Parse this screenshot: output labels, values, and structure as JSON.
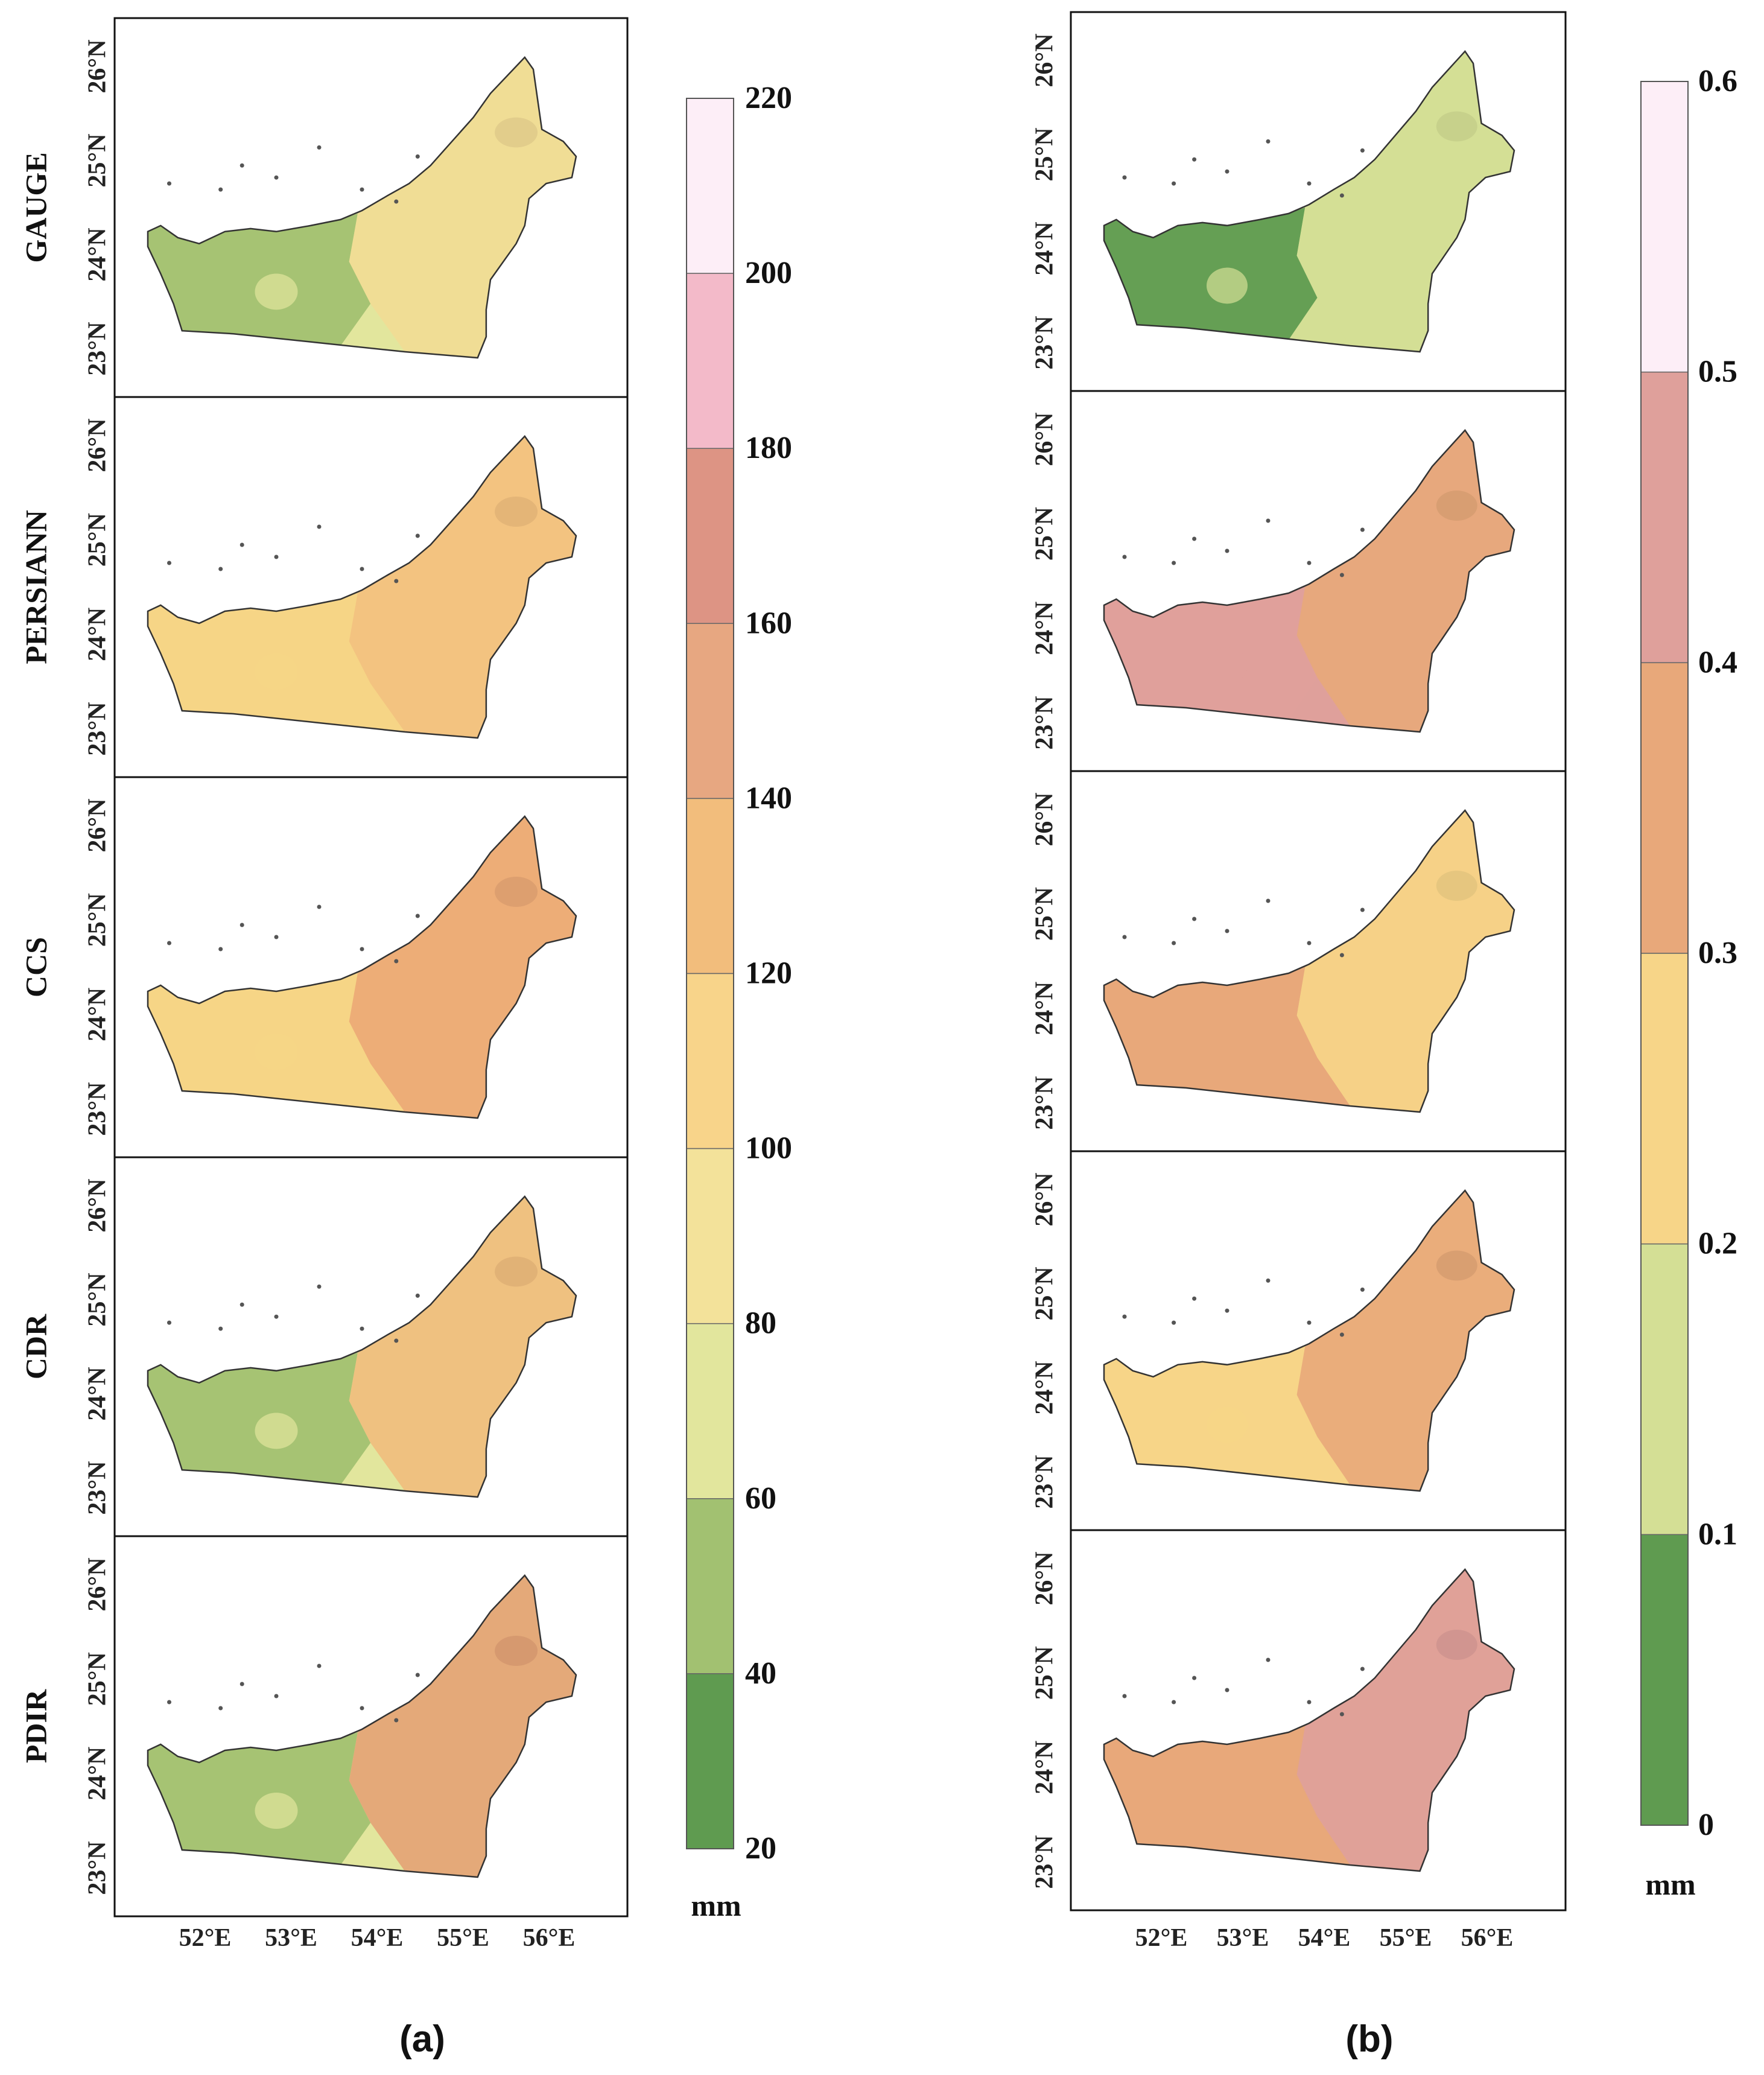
{
  "chart_data": [
    {
      "type": "heatmap",
      "panel_label": "(a)",
      "rows": [
        {
          "label": "GAUGE",
          "base": "#e2e69d",
          "west": "#a2c171",
          "east": "#f2dc95"
        },
        {
          "label": "PERSIANN",
          "base": "#f6d586",
          "west": "#f6d586",
          "east": "#f3c17f"
        },
        {
          "label": "CCS",
          "base": "#f6d586",
          "west": "#f6d586",
          "east": "#eca876"
        },
        {
          "label": "CDR",
          "base": "#e2e69d",
          "west": "#a2c171",
          "east": "#f1bd7d"
        },
        {
          "label": "PDIR",
          "base": "#e2e69d",
          "west": "#a2c171",
          "east": "#e4a276"
        }
      ],
      "lat_ticks": [
        "26°N",
        "25°N",
        "24°N",
        "23°N"
      ],
      "lon_ticks": [
        "52°E",
        "53°E",
        "54°E",
        "55°E",
        "56°E"
      ],
      "colorbar": {
        "ticks": [
          "220",
          "200",
          "180",
          "160",
          "140",
          "120",
          "100",
          "80",
          "60",
          "40",
          "20"
        ],
        "bins": [
          "#fdeef7",
          "#f3bac9",
          "#dd9484",
          "#e7a781",
          "#f2bd7c",
          "#f8d48a",
          "#f3e29a",
          "#e2e69d",
          "#a2c171",
          "#5f9b50"
        ],
        "unit": "mm",
        "range": [
          20,
          220
        ]
      }
    },
    {
      "type": "heatmap",
      "panel_label": "(b)",
      "rows": [
        {
          "label": "GAUGE",
          "base": "#d4df95",
          "west": "#5f9b50",
          "east": "#d4df95"
        },
        {
          "label": "PERSIANN",
          "base": "#dfa09b",
          "west": "#dfa09b",
          "east": "#e8a87a"
        },
        {
          "label": "CCS",
          "base": "#e8a87a",
          "west": "#e8a87a",
          "east": "#f7d588"
        },
        {
          "label": "CDR",
          "base": "#f7d588",
          "west": "#f7d588",
          "east": "#e8a87a"
        },
        {
          "label": "PDIR",
          "base": "#e8a87a",
          "west": "#e8a87a",
          "east": "#dfa09b"
        }
      ],
      "lat_ticks": [
        "26°N",
        "25°N",
        "24°N",
        "23°N"
      ],
      "lon_ticks": [
        "52°E",
        "53°E",
        "54°E",
        "55°E",
        "56°E"
      ],
      "colorbar": {
        "ticks": [
          "0.6",
          "0.5",
          "0.4",
          "0.3",
          "0.2",
          "0.1",
          "0"
        ],
        "bins": [
          "#fdeef7",
          "#dfa09b",
          "#e8a87a",
          "#f7d588",
          "#d4df95",
          "#5f9b50"
        ],
        "unit": "mm",
        "range": [
          0,
          0.6
        ]
      }
    }
  ]
}
